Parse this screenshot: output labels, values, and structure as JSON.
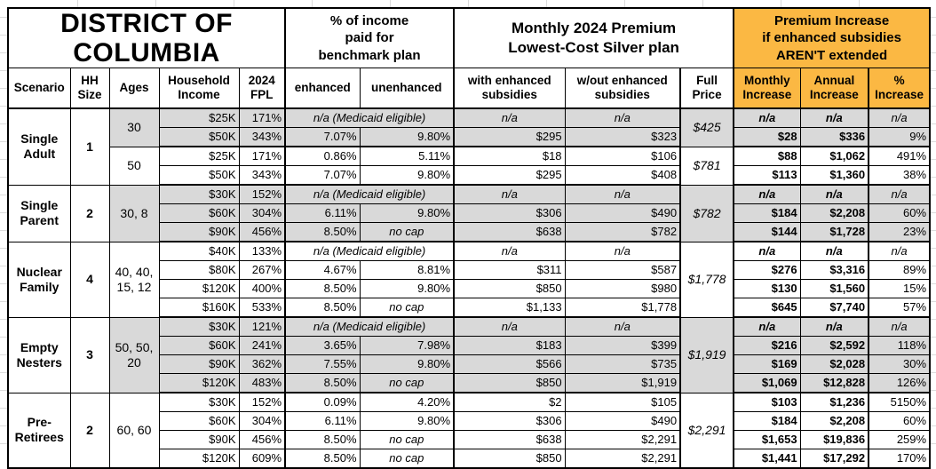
{
  "colors": {
    "highlight_orange": "#FBB843",
    "band_gray": "#D9D9D9",
    "border_black": "#000000",
    "gridline_gray": "#DCDCDC"
  },
  "group_headers": {
    "title": "DISTRICT OF\nCOLUMBIA",
    "benchmark": "% of income\npaid for\nbenchmark plan",
    "premium": "Monthly 2024 Premium\nLowest-Cost Silver plan",
    "increase": "Premium Increase\nif enhanced subsidies\nAREN'T extended"
  },
  "column_headers": [
    "Scenario",
    "HH\nSize",
    "Ages",
    "Household\nIncome",
    "2024\nFPL",
    "enhanced",
    "unenhanced",
    "with enhanced\nsubsidies",
    "w/out enhanced\nsubsidies",
    "Full\nPrice",
    "Monthly\nIncrease",
    "Annual\nIncrease",
    "%\nIncrease"
  ],
  "scenarios": [
    {
      "name": "Single\nAdult",
      "hh_size": "1",
      "age_groups": [
        {
          "ages": "30",
          "shaded": true,
          "full_price": "$425",
          "rows": [
            {
              "income": "$25K",
              "fpl": "171%",
              "enhanced": "n/a (Medicaid eligible)",
              "unenhanced": null,
              "with_sub": "n/a",
              "wout_sub": "n/a",
              "monthly": "n/a",
              "annual": "n/a",
              "pct": "n/a"
            },
            {
              "income": "$50K",
              "fpl": "343%",
              "enhanced": "7.07%",
              "unenhanced": "9.80%",
              "with_sub": "$295",
              "wout_sub": "$323",
              "monthly": "$28",
              "annual": "$336",
              "pct": "9%"
            }
          ]
        },
        {
          "ages": "50",
          "shaded": false,
          "full_price": "$781",
          "rows": [
            {
              "income": "$25K",
              "fpl": "171%",
              "enhanced": "0.86%",
              "unenhanced": "5.11%",
              "with_sub": "$18",
              "wout_sub": "$106",
              "monthly": "$88",
              "annual": "$1,062",
              "pct": "491%"
            },
            {
              "income": "$50K",
              "fpl": "343%",
              "enhanced": "7.07%",
              "unenhanced": "9.80%",
              "with_sub": "$295",
              "wout_sub": "$408",
              "monthly": "$113",
              "annual": "$1,360",
              "pct": "38%"
            }
          ]
        }
      ]
    },
    {
      "name": "Single\nParent",
      "hh_size": "2",
      "age_groups": [
        {
          "ages": "30, 8",
          "shaded": true,
          "full_price": "$782",
          "rows": [
            {
              "income": "$30K",
              "fpl": "152%",
              "enhanced": "n/a (Medicaid eligible)",
              "unenhanced": null,
              "with_sub": "n/a",
              "wout_sub": "n/a",
              "monthly": "n/a",
              "annual": "n/a",
              "pct": "n/a"
            },
            {
              "income": "$60K",
              "fpl": "304%",
              "enhanced": "6.11%",
              "unenhanced": "9.80%",
              "with_sub": "$306",
              "wout_sub": "$490",
              "monthly": "$184",
              "annual": "$2,208",
              "pct": "60%"
            },
            {
              "income": "$90K",
              "fpl": "456%",
              "enhanced": "8.50%",
              "unenhanced": "no cap",
              "with_sub": "$638",
              "wout_sub": "$782",
              "monthly": "$144",
              "annual": "$1,728",
              "pct": "23%"
            }
          ]
        }
      ]
    },
    {
      "name": "Nuclear\nFamily",
      "hh_size": "4",
      "age_groups": [
        {
          "ages": "40, 40,\n15, 12",
          "shaded": false,
          "full_price": "$1,778",
          "rows": [
            {
              "income": "$40K",
              "fpl": "133%",
              "enhanced": "n/a (Medicaid eligible)",
              "unenhanced": null,
              "with_sub": "n/a",
              "wout_sub": "n/a",
              "monthly": "n/a",
              "annual": "n/a",
              "pct": "n/a"
            },
            {
              "income": "$80K",
              "fpl": "267%",
              "enhanced": "4.67%",
              "unenhanced": "8.81%",
              "with_sub": "$311",
              "wout_sub": "$587",
              "monthly": "$276",
              "annual": "$3,316",
              "pct": "89%"
            },
            {
              "income": "$120K",
              "fpl": "400%",
              "enhanced": "8.50%",
              "unenhanced": "9.80%",
              "with_sub": "$850",
              "wout_sub": "$980",
              "monthly": "$130",
              "annual": "$1,560",
              "pct": "15%"
            },
            {
              "income": "$160K",
              "fpl": "533%",
              "enhanced": "8.50%",
              "unenhanced": "no cap",
              "with_sub": "$1,133",
              "wout_sub": "$1,778",
              "monthly": "$645",
              "annual": "$7,740",
              "pct": "57%"
            }
          ]
        }
      ]
    },
    {
      "name": "Empty\nNesters",
      "hh_size": "3",
      "age_groups": [
        {
          "ages": "50, 50,\n20",
          "shaded": true,
          "full_price": "$1,919",
          "rows": [
            {
              "income": "$30K",
              "fpl": "121%",
              "enhanced": "n/a (Medicaid eligible)",
              "unenhanced": null,
              "with_sub": "n/a",
              "wout_sub": "n/a",
              "monthly": "n/a",
              "annual": "n/a",
              "pct": "n/a"
            },
            {
              "income": "$60K",
              "fpl": "241%",
              "enhanced": "3.65%",
              "unenhanced": "7.98%",
              "with_sub": "$183",
              "wout_sub": "$399",
              "monthly": "$216",
              "annual": "$2,592",
              "pct": "118%"
            },
            {
              "income": "$90K",
              "fpl": "362%",
              "enhanced": "7.55%",
              "unenhanced": "9.80%",
              "with_sub": "$566",
              "wout_sub": "$735",
              "monthly": "$169",
              "annual": "$2,028",
              "pct": "30%"
            },
            {
              "income": "$120K",
              "fpl": "483%",
              "enhanced": "8.50%",
              "unenhanced": "no cap",
              "with_sub": "$850",
              "wout_sub": "$1,919",
              "monthly": "$1,069",
              "annual": "$12,828",
              "pct": "126%"
            }
          ]
        }
      ]
    },
    {
      "name": "Pre-\nRetirees",
      "hh_size": "2",
      "age_groups": [
        {
          "ages": "60, 60",
          "shaded": false,
          "full_price": "$2,291",
          "rows": [
            {
              "income": "$30K",
              "fpl": "152%",
              "enhanced": "0.09%",
              "unenhanced": "4.20%",
              "with_sub": "$2",
              "wout_sub": "$105",
              "monthly": "$103",
              "annual": "$1,236",
              "pct": "5150%"
            },
            {
              "income": "$60K",
              "fpl": "304%",
              "enhanced": "6.11%",
              "unenhanced": "9.80%",
              "with_sub": "$306",
              "wout_sub": "$490",
              "monthly": "$184",
              "annual": "$2,208",
              "pct": "60%"
            },
            {
              "income": "$90K",
              "fpl": "456%",
              "enhanced": "8.50%",
              "unenhanced": "no cap",
              "with_sub": "$638",
              "wout_sub": "$2,291",
              "monthly": "$1,653",
              "annual": "$19,836",
              "pct": "259%"
            },
            {
              "income": "$120K",
              "fpl": "609%",
              "enhanced": "8.50%",
              "unenhanced": "no cap",
              "with_sub": "$850",
              "wout_sub": "$2,291",
              "monthly": "$1,441",
              "annual": "$17,292",
              "pct": "170%"
            }
          ]
        }
      ]
    }
  ]
}
